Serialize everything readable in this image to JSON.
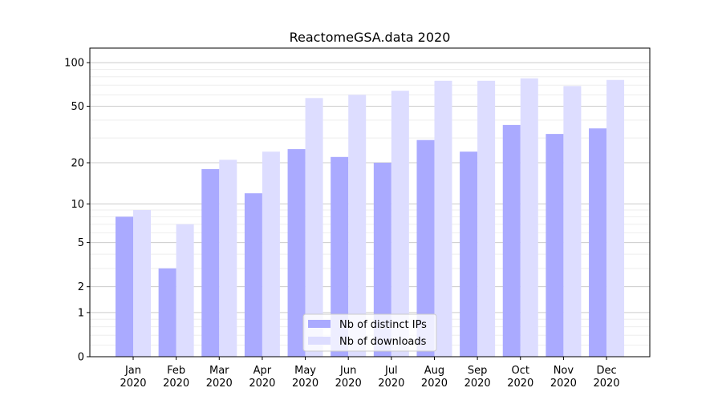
{
  "chart_data": {
    "type": "bar",
    "title": "ReactomeGSA.data 2020",
    "xlabel": "",
    "ylabel": "",
    "yscale": "log(1+x)",
    "ylim": [
      0,
      126
    ],
    "yticks": [
      0,
      1,
      2,
      5,
      10,
      20,
      50,
      100
    ],
    "grid": true,
    "legend_position": "lower center",
    "categories": [
      "Jan\n2020",
      "Feb\n2020",
      "Mar\n2020",
      "Apr\n2020",
      "May\n2020",
      "Jun\n2020",
      "Jul\n2020",
      "Aug\n2020",
      "Sep\n2020",
      "Oct\n2020",
      "Nov\n2020",
      "Dec\n2020"
    ],
    "series": [
      {
        "name": "Nb of distinct IPs",
        "color": "#aaaaff",
        "values": [
          8,
          3,
          18,
          12,
          25,
          22,
          20,
          29,
          24,
          37,
          32,
          35
        ]
      },
      {
        "name": "Nb of downloads",
        "color": "#ddddff",
        "values": [
          9,
          7,
          21,
          24,
          57,
          60,
          64,
          75,
          75,
          78,
          69,
          76
        ]
      }
    ]
  }
}
